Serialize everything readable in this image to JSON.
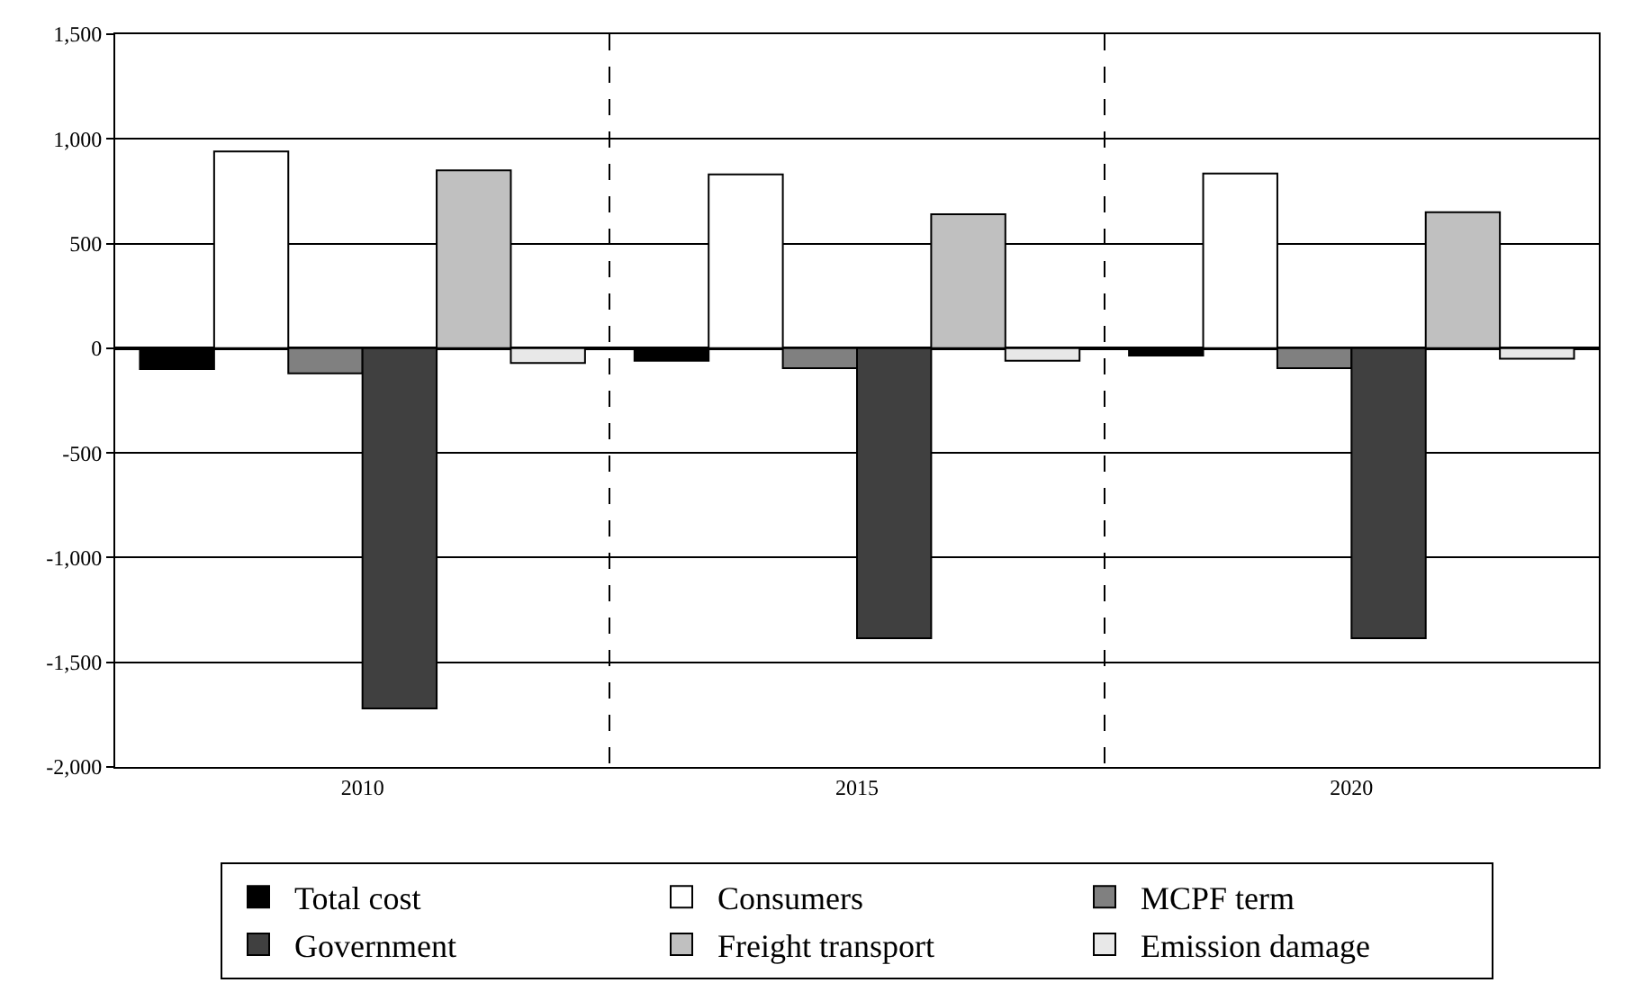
{
  "chart_data": {
    "type": "bar",
    "categories": [
      "2010",
      "2015",
      "2020"
    ],
    "series": [
      {
        "name": "Total cost",
        "color": "#000000",
        "values": [
          -100,
          -60,
          -35
        ]
      },
      {
        "name": "Consumers",
        "color": "#ffffff",
        "values": [
          940,
          830,
          835
        ]
      },
      {
        "name": "MCPF term",
        "color": "#808080",
        "values": [
          -120,
          -95,
          -95
        ]
      },
      {
        "name": "Government",
        "color": "#404040",
        "values": [
          -1720,
          -1385,
          -1385
        ]
      },
      {
        "name": "Freight transport",
        "color": "#c0c0c0",
        "values": [
          850,
          640,
          650
        ]
      },
      {
        "name": "Emission damage",
        "color": "#e8e8e8",
        "values": [
          -70,
          -60,
          -50
        ]
      }
    ],
    "ylim": [
      -2000,
      1500
    ],
    "yticks": [
      {
        "value": -2000,
        "label": "-2,000"
      },
      {
        "value": -1500,
        "label": "-1,500"
      },
      {
        "value": -1000,
        "label": "-1,000"
      },
      -500,
      0,
      500,
      {
        "value": 1000,
        "label": "1,000"
      },
      {
        "value": 1500,
        "label": "1,500"
      }
    ],
    "grid": true,
    "legend": "bottom"
  }
}
